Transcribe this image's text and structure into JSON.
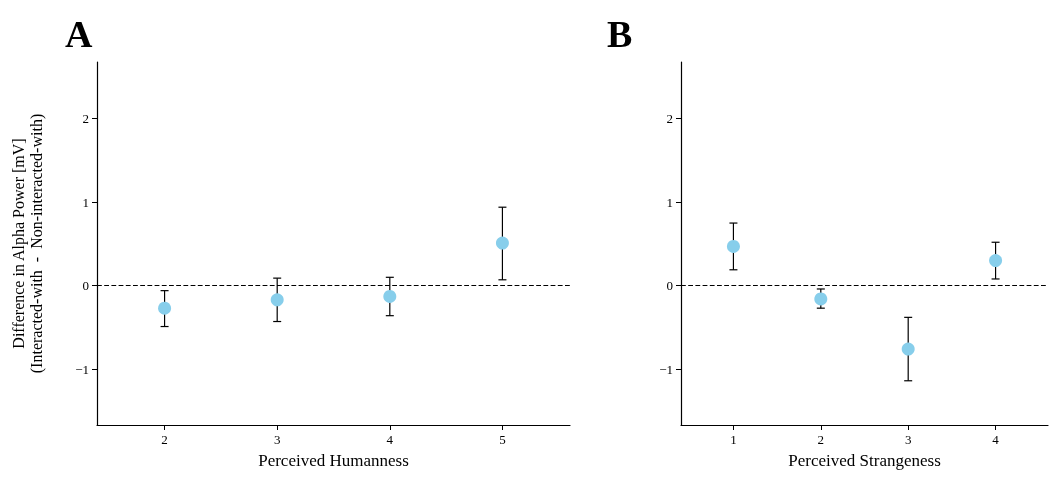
{
  "chart_data": [
    {
      "type": "scatter",
      "title": "A",
      "xlabel": "Perceived Humanness",
      "ylabel": "Difference in Alpha Power [mV]\n(Interacted-with  -  Non-interacted-with)",
      "xlim": [
        1.4,
        5.6
      ],
      "xticks": [
        2,
        3,
        4,
        5
      ],
      "ylim": [
        -1.67,
        2.68
      ],
      "yticks": [
        {
          "value": -1,
          "label": "−1"
        },
        0,
        1,
        2
      ],
      "grid": false,
      "marker": "circle",
      "ref_lines": [
        {
          "axis": "y",
          "value": 0,
          "line_style": "dashed",
          "color": "#000000"
        }
      ],
      "series": [
        {
          "color": "#87ceeb",
          "x": [
            2,
            3,
            4,
            5
          ],
          "values": [
            -0.27,
            -0.17,
            -0.13,
            0.51
          ],
          "errors": [
            [
              -0.49,
              -0.06
            ],
            [
              -0.43,
              0.09
            ],
            [
              -0.36,
              0.1
            ],
            [
              0.07,
              0.94
            ]
          ]
        }
      ]
    },
    {
      "type": "scatter",
      "title": "B",
      "xlabel": "Perceived Strangeness",
      "xlim": [
        0.4,
        4.6
      ],
      "xticks": [
        1,
        2,
        3,
        4
      ],
      "ylim": [
        -1.67,
        2.68
      ],
      "yticks": [
        {
          "value": -1,
          "label": "−1"
        },
        0,
        1,
        2
      ],
      "grid": false,
      "marker": "circle",
      "ref_lines": [
        {
          "axis": "y",
          "value": 0,
          "line_style": "dashed",
          "color": "#000000"
        }
      ],
      "series": [
        {
          "color": "#87ceeb",
          "x": [
            1,
            2,
            3,
            4
          ],
          "values": [
            0.47,
            -0.16,
            -0.76,
            0.3
          ],
          "errors": [
            [
              0.19,
              0.75
            ],
            [
              -0.27,
              -0.04
            ],
            [
              -1.14,
              -0.38
            ],
            [
              0.08,
              0.52
            ]
          ]
        }
      ]
    }
  ]
}
